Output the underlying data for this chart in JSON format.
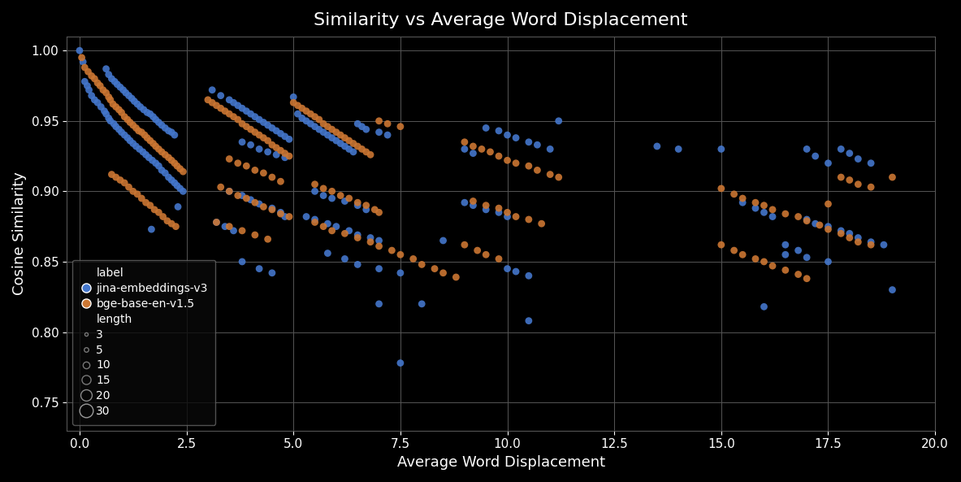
{
  "title": "Similarity vs Average Word Displacement",
  "xlabel": "Average Word Displacement",
  "ylabel": "Cosine Similarity",
  "xlim": [
    -0.3,
    20.0
  ],
  "ylim": [
    0.73,
    1.01
  ],
  "xticks": [
    0.0,
    2.5,
    5.0,
    7.5,
    10.0,
    12.5,
    15.0,
    17.5,
    20.0
  ],
  "yticks": [
    0.75,
    0.8,
    0.85,
    0.9,
    0.95,
    1.0
  ],
  "background_color": "#000000",
  "grid_color": "#555555",
  "label_color": "#ffffff",
  "blue_color": "#4477CC",
  "orange_color": "#CC7733",
  "point_size": 40,
  "jina_points": [
    [
      0.0,
      1.0
    ],
    [
      0.08,
      0.992
    ],
    [
      0.12,
      0.978
    ],
    [
      0.18,
      0.975
    ],
    [
      0.22,
      0.972
    ],
    [
      0.28,
      0.968
    ],
    [
      0.35,
      0.965
    ],
    [
      0.42,
      0.963
    ],
    [
      0.5,
      0.96
    ],
    [
      0.58,
      0.957
    ],
    [
      0.62,
      0.955
    ],
    [
      0.68,
      0.952
    ],
    [
      0.72,
      0.95
    ],
    [
      0.8,
      0.948
    ],
    [
      0.85,
      0.946
    ],
    [
      0.92,
      0.944
    ],
    [
      0.98,
      0.942
    ],
    [
      1.05,
      0.94
    ],
    [
      1.12,
      0.938
    ],
    [
      1.18,
      0.936
    ],
    [
      1.25,
      0.934
    ],
    [
      1.32,
      0.932
    ],
    [
      1.4,
      0.93
    ],
    [
      1.48,
      0.928
    ],
    [
      1.55,
      0.926
    ],
    [
      1.62,
      0.924
    ],
    [
      1.7,
      0.922
    ],
    [
      1.78,
      0.92
    ],
    [
      1.85,
      0.918
    ],
    [
      1.92,
      0.915
    ],
    [
      2.0,
      0.913
    ],
    [
      2.08,
      0.91
    ],
    [
      2.15,
      0.908
    ],
    [
      2.22,
      0.906
    ],
    [
      2.28,
      0.904
    ],
    [
      2.35,
      0.902
    ],
    [
      2.42,
      0.9
    ],
    [
      0.62,
      0.987
    ],
    [
      0.68,
      0.983
    ],
    [
      0.75,
      0.98
    ],
    [
      0.82,
      0.978
    ],
    [
      0.88,
      0.976
    ],
    [
      0.95,
      0.974
    ],
    [
      1.02,
      0.972
    ],
    [
      1.08,
      0.97
    ],
    [
      1.15,
      0.968
    ],
    [
      1.22,
      0.966
    ],
    [
      1.28,
      0.964
    ],
    [
      1.35,
      0.962
    ],
    [
      1.42,
      0.96
    ],
    [
      1.5,
      0.958
    ],
    [
      1.58,
      0.956
    ],
    [
      1.65,
      0.955
    ],
    [
      1.72,
      0.953
    ],
    [
      1.78,
      0.951
    ],
    [
      1.85,
      0.949
    ],
    [
      1.92,
      0.947
    ],
    [
      2.0,
      0.945
    ],
    [
      2.08,
      0.943
    ],
    [
      2.15,
      0.942
    ],
    [
      2.22,
      0.94
    ],
    [
      2.3,
      0.889
    ],
    [
      1.68,
      0.873
    ],
    [
      3.1,
      0.972
    ],
    [
      3.3,
      0.968
    ],
    [
      3.5,
      0.965
    ],
    [
      3.6,
      0.963
    ],
    [
      3.7,
      0.961
    ],
    [
      3.8,
      0.959
    ],
    [
      3.9,
      0.957
    ],
    [
      4.0,
      0.955
    ],
    [
      4.1,
      0.953
    ],
    [
      4.2,
      0.951
    ],
    [
      4.3,
      0.949
    ],
    [
      4.4,
      0.947
    ],
    [
      4.5,
      0.945
    ],
    [
      4.6,
      0.943
    ],
    [
      4.7,
      0.941
    ],
    [
      4.8,
      0.939
    ],
    [
      4.9,
      0.937
    ],
    [
      3.8,
      0.935
    ],
    [
      4.0,
      0.933
    ],
    [
      4.2,
      0.93
    ],
    [
      4.4,
      0.928
    ],
    [
      4.6,
      0.926
    ],
    [
      4.8,
      0.924
    ],
    [
      3.5,
      0.9
    ],
    [
      3.8,
      0.897
    ],
    [
      4.0,
      0.894
    ],
    [
      4.2,
      0.891
    ],
    [
      4.5,
      0.888
    ],
    [
      4.7,
      0.885
    ],
    [
      4.8,
      0.882
    ],
    [
      3.2,
      0.878
    ],
    [
      3.4,
      0.875
    ],
    [
      3.6,
      0.872
    ],
    [
      3.8,
      0.85
    ],
    [
      4.2,
      0.845
    ],
    [
      4.5,
      0.842
    ],
    [
      5.0,
      0.967
    ],
    [
      5.1,
      0.955
    ],
    [
      5.2,
      0.952
    ],
    [
      5.3,
      0.95
    ],
    [
      5.4,
      0.948
    ],
    [
      5.5,
      0.946
    ],
    [
      5.6,
      0.944
    ],
    [
      5.7,
      0.942
    ],
    [
      5.8,
      0.94
    ],
    [
      5.9,
      0.938
    ],
    [
      6.0,
      0.936
    ],
    [
      6.1,
      0.934
    ],
    [
      6.2,
      0.932
    ],
    [
      6.3,
      0.93
    ],
    [
      6.4,
      0.928
    ],
    [
      6.5,
      0.948
    ],
    [
      6.6,
      0.946
    ],
    [
      6.7,
      0.944
    ],
    [
      7.0,
      0.942
    ],
    [
      7.2,
      0.94
    ],
    [
      5.5,
      0.9
    ],
    [
      5.7,
      0.897
    ],
    [
      5.9,
      0.895
    ],
    [
      6.2,
      0.893
    ],
    [
      6.5,
      0.89
    ],
    [
      6.7,
      0.887
    ],
    [
      5.3,
      0.882
    ],
    [
      5.5,
      0.88
    ],
    [
      5.8,
      0.877
    ],
    [
      6.0,
      0.875
    ],
    [
      6.3,
      0.872
    ],
    [
      6.5,
      0.869
    ],
    [
      6.8,
      0.867
    ],
    [
      7.0,
      0.865
    ],
    [
      5.8,
      0.856
    ],
    [
      6.2,
      0.852
    ],
    [
      6.5,
      0.848
    ],
    [
      7.0,
      0.845
    ],
    [
      7.5,
      0.842
    ],
    [
      7.0,
      0.82
    ],
    [
      7.5,
      0.778
    ],
    [
      8.0,
      0.82
    ],
    [
      8.5,
      0.865
    ],
    [
      9.0,
      0.93
    ],
    [
      9.2,
      0.927
    ],
    [
      9.5,
      0.945
    ],
    [
      9.8,
      0.943
    ],
    [
      10.0,
      0.94
    ],
    [
      10.2,
      0.938
    ],
    [
      10.5,
      0.935
    ],
    [
      10.7,
      0.933
    ],
    [
      11.0,
      0.93
    ],
    [
      11.2,
      0.95
    ],
    [
      9.0,
      0.892
    ],
    [
      9.2,
      0.89
    ],
    [
      9.5,
      0.887
    ],
    [
      9.8,
      0.885
    ],
    [
      10.0,
      0.882
    ],
    [
      10.0,
      0.845
    ],
    [
      10.2,
      0.843
    ],
    [
      10.5,
      0.84
    ],
    [
      10.5,
      0.808
    ],
    [
      13.5,
      0.932
    ],
    [
      14.0,
      0.93
    ],
    [
      15.0,
      0.93
    ],
    [
      15.5,
      0.892
    ],
    [
      15.8,
      0.888
    ],
    [
      16.0,
      0.885
    ],
    [
      16.2,
      0.882
    ],
    [
      16.5,
      0.862
    ],
    [
      16.8,
      0.858
    ],
    [
      17.0,
      0.93
    ],
    [
      17.2,
      0.925
    ],
    [
      17.5,
      0.92
    ],
    [
      17.8,
      0.93
    ],
    [
      18.0,
      0.927
    ],
    [
      18.2,
      0.923
    ],
    [
      18.5,
      0.92
    ],
    [
      17.0,
      0.88
    ],
    [
      17.2,
      0.877
    ],
    [
      17.5,
      0.875
    ],
    [
      17.8,
      0.872
    ],
    [
      18.0,
      0.87
    ],
    [
      18.2,
      0.867
    ],
    [
      18.5,
      0.864
    ],
    [
      18.8,
      0.862
    ],
    [
      19.0,
      0.83
    ],
    [
      16.0,
      0.818
    ],
    [
      16.5,
      0.855
    ],
    [
      17.0,
      0.853
    ],
    [
      17.5,
      0.85
    ]
  ],
  "bge_points": [
    [
      0.05,
      0.995
    ],
    [
      0.12,
      0.988
    ],
    [
      0.2,
      0.985
    ],
    [
      0.28,
      0.982
    ],
    [
      0.35,
      0.98
    ],
    [
      0.42,
      0.977
    ],
    [
      0.48,
      0.975
    ],
    [
      0.55,
      0.972
    ],
    [
      0.62,
      0.97
    ],
    [
      0.68,
      0.967
    ],
    [
      0.72,
      0.965
    ],
    [
      0.78,
      0.962
    ],
    [
      0.85,
      0.96
    ],
    [
      0.92,
      0.958
    ],
    [
      0.98,
      0.956
    ],
    [
      1.05,
      0.953
    ],
    [
      1.12,
      0.951
    ],
    [
      1.18,
      0.949
    ],
    [
      1.25,
      0.947
    ],
    [
      1.32,
      0.945
    ],
    [
      1.38,
      0.943
    ],
    [
      1.45,
      0.942
    ],
    [
      1.52,
      0.94
    ],
    [
      1.58,
      0.938
    ],
    [
      1.65,
      0.936
    ],
    [
      1.72,
      0.934
    ],
    [
      1.78,
      0.932
    ],
    [
      1.85,
      0.93
    ],
    [
      1.92,
      0.928
    ],
    [
      2.0,
      0.926
    ],
    [
      2.08,
      0.924
    ],
    [
      2.15,
      0.922
    ],
    [
      2.22,
      0.92
    ],
    [
      2.28,
      0.918
    ],
    [
      2.35,
      0.916
    ],
    [
      2.42,
      0.914
    ],
    [
      0.75,
      0.912
    ],
    [
      0.85,
      0.91
    ],
    [
      0.95,
      0.908
    ],
    [
      1.05,
      0.906
    ],
    [
      1.15,
      0.903
    ],
    [
      1.25,
      0.9
    ],
    [
      1.35,
      0.898
    ],
    [
      1.45,
      0.895
    ],
    [
      1.55,
      0.892
    ],
    [
      1.65,
      0.89
    ],
    [
      1.75,
      0.887
    ],
    [
      1.85,
      0.885
    ],
    [
      1.95,
      0.882
    ],
    [
      2.05,
      0.879
    ],
    [
      2.15,
      0.877
    ],
    [
      2.25,
      0.875
    ],
    [
      3.0,
      0.965
    ],
    [
      3.1,
      0.963
    ],
    [
      3.2,
      0.961
    ],
    [
      3.3,
      0.959
    ],
    [
      3.4,
      0.957
    ],
    [
      3.5,
      0.955
    ],
    [
      3.6,
      0.953
    ],
    [
      3.7,
      0.951
    ],
    [
      3.8,
      0.948
    ],
    [
      3.9,
      0.946
    ],
    [
      4.0,
      0.944
    ],
    [
      4.1,
      0.942
    ],
    [
      4.2,
      0.94
    ],
    [
      4.3,
      0.938
    ],
    [
      4.4,
      0.936
    ],
    [
      4.5,
      0.933
    ],
    [
      4.6,
      0.931
    ],
    [
      4.7,
      0.929
    ],
    [
      4.8,
      0.927
    ],
    [
      4.9,
      0.925
    ],
    [
      3.5,
      0.923
    ],
    [
      3.7,
      0.92
    ],
    [
      3.9,
      0.918
    ],
    [
      4.1,
      0.915
    ],
    [
      4.3,
      0.913
    ],
    [
      4.5,
      0.91
    ],
    [
      4.7,
      0.907
    ],
    [
      3.3,
      0.903
    ],
    [
      3.5,
      0.9
    ],
    [
      3.7,
      0.897
    ],
    [
      3.9,
      0.895
    ],
    [
      4.1,
      0.892
    ],
    [
      4.3,
      0.889
    ],
    [
      4.5,
      0.887
    ],
    [
      4.7,
      0.884
    ],
    [
      4.9,
      0.882
    ],
    [
      3.2,
      0.878
    ],
    [
      3.5,
      0.875
    ],
    [
      3.8,
      0.872
    ],
    [
      4.1,
      0.869
    ],
    [
      4.4,
      0.866
    ],
    [
      5.0,
      0.963
    ],
    [
      5.1,
      0.961
    ],
    [
      5.2,
      0.959
    ],
    [
      5.3,
      0.957
    ],
    [
      5.4,
      0.955
    ],
    [
      5.5,
      0.953
    ],
    [
      5.6,
      0.951
    ],
    [
      5.7,
      0.948
    ],
    [
      5.8,
      0.946
    ],
    [
      5.9,
      0.944
    ],
    [
      6.0,
      0.942
    ],
    [
      6.1,
      0.94
    ],
    [
      6.2,
      0.938
    ],
    [
      6.3,
      0.936
    ],
    [
      6.4,
      0.934
    ],
    [
      6.5,
      0.932
    ],
    [
      6.6,
      0.93
    ],
    [
      6.7,
      0.928
    ],
    [
      6.8,
      0.926
    ],
    [
      7.0,
      0.95
    ],
    [
      7.2,
      0.948
    ],
    [
      7.5,
      0.946
    ],
    [
      5.5,
      0.905
    ],
    [
      5.7,
      0.902
    ],
    [
      5.9,
      0.9
    ],
    [
      6.1,
      0.897
    ],
    [
      6.3,
      0.895
    ],
    [
      6.5,
      0.892
    ],
    [
      6.7,
      0.89
    ],
    [
      6.9,
      0.887
    ],
    [
      7.0,
      0.885
    ],
    [
      5.5,
      0.878
    ],
    [
      5.7,
      0.875
    ],
    [
      5.9,
      0.872
    ],
    [
      6.2,
      0.87
    ],
    [
      6.5,
      0.867
    ],
    [
      6.8,
      0.864
    ],
    [
      7.0,
      0.861
    ],
    [
      7.3,
      0.858
    ],
    [
      7.5,
      0.855
    ],
    [
      7.8,
      0.852
    ],
    [
      8.0,
      0.848
    ],
    [
      8.3,
      0.845
    ],
    [
      8.5,
      0.842
    ],
    [
      8.8,
      0.839
    ],
    [
      9.0,
      0.935
    ],
    [
      9.2,
      0.932
    ],
    [
      9.4,
      0.93
    ],
    [
      9.6,
      0.928
    ],
    [
      9.8,
      0.925
    ],
    [
      10.0,
      0.922
    ],
    [
      10.2,
      0.92
    ],
    [
      10.5,
      0.918
    ],
    [
      10.7,
      0.915
    ],
    [
      11.0,
      0.912
    ],
    [
      11.2,
      0.91
    ],
    [
      9.2,
      0.893
    ],
    [
      9.5,
      0.89
    ],
    [
      9.8,
      0.888
    ],
    [
      10.0,
      0.885
    ],
    [
      10.2,
      0.882
    ],
    [
      10.5,
      0.88
    ],
    [
      10.8,
      0.877
    ],
    [
      9.0,
      0.862
    ],
    [
      9.3,
      0.858
    ],
    [
      9.5,
      0.855
    ],
    [
      9.8,
      0.852
    ],
    [
      15.0,
      0.902
    ],
    [
      15.3,
      0.898
    ],
    [
      15.5,
      0.895
    ],
    [
      15.8,
      0.892
    ],
    [
      16.0,
      0.89
    ],
    [
      16.2,
      0.887
    ],
    [
      16.5,
      0.884
    ],
    [
      16.8,
      0.882
    ],
    [
      17.0,
      0.879
    ],
    [
      17.3,
      0.876
    ],
    [
      17.5,
      0.873
    ],
    [
      17.8,
      0.87
    ],
    [
      18.0,
      0.867
    ],
    [
      18.2,
      0.864
    ],
    [
      18.5,
      0.862
    ],
    [
      15.0,
      0.862
    ],
    [
      15.3,
      0.858
    ],
    [
      15.5,
      0.855
    ],
    [
      15.8,
      0.852
    ],
    [
      16.0,
      0.85
    ],
    [
      16.2,
      0.847
    ],
    [
      16.5,
      0.844
    ],
    [
      16.8,
      0.841
    ],
    [
      17.0,
      0.838
    ],
    [
      17.5,
      0.891
    ],
    [
      17.8,
      0.91
    ],
    [
      18.0,
      0.908
    ],
    [
      18.2,
      0.905
    ],
    [
      18.5,
      0.903
    ],
    [
      19.0,
      0.91
    ]
  ]
}
